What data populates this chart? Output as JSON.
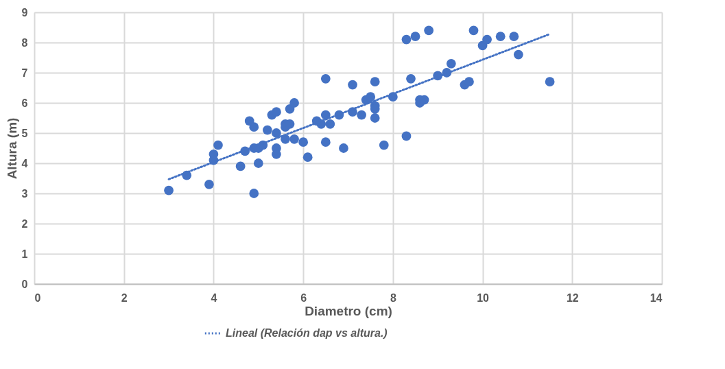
{
  "chart_data": {
    "type": "scatter",
    "xlabel": "Diametro (cm)",
    "ylabel": "Altura (m)",
    "xlim": [
      0,
      14
    ],
    "xticks": [
      0,
      2,
      4,
      6,
      8,
      10,
      12,
      14
    ],
    "ylim": [
      0,
      9
    ],
    "yticks": [
      0,
      1,
      2,
      3,
      4,
      5,
      6,
      7,
      8,
      9
    ],
    "grid": true,
    "legend": "bottom",
    "marker": "circle",
    "series": [
      {
        "color": "#4472c4",
        "x": [
          3.0,
          3.4,
          3.9,
          4.0,
          4.0,
          4.1,
          4.6,
          4.7,
          4.8,
          4.9,
          4.9,
          4.9,
          5.0,
          5.0,
          5.1,
          5.2,
          5.3,
          5.4,
          5.4,
          5.4,
          5.4,
          5.6,
          5.6,
          5.6,
          5.7,
          5.7,
          5.8,
          5.8,
          6.0,
          6.1,
          6.3,
          6.4,
          6.5,
          6.5,
          6.5,
          6.6,
          6.8,
          6.9,
          7.1,
          7.1,
          7.3,
          7.4,
          7.5,
          7.6,
          7.6,
          7.6,
          7.6,
          7.8,
          8.0,
          8.3,
          8.3,
          8.4,
          8.5,
          8.6,
          8.6,
          8.7,
          8.8,
          9.0,
          9.2,
          9.3,
          9.6,
          9.7,
          9.8,
          10.0,
          10.1,
          10.4,
          10.7,
          10.8,
          11.5
        ],
        "values": [
          3.1,
          3.6,
          3.3,
          4.3,
          4.1,
          4.6,
          3.9,
          4.4,
          5.4,
          5.2,
          4.5,
          3.0,
          4.5,
          4.0,
          4.6,
          5.1,
          5.6,
          5.7,
          5.0,
          4.5,
          4.3,
          5.3,
          5.2,
          4.8,
          5.8,
          5.3,
          6.0,
          4.8,
          4.7,
          4.2,
          5.4,
          5.3,
          6.8,
          5.6,
          4.7,
          5.3,
          5.6,
          4.5,
          6.6,
          5.7,
          5.6,
          6.1,
          6.2,
          6.7,
          5.9,
          5.8,
          5.5,
          4.6,
          6.2,
          8.1,
          4.9,
          6.8,
          8.2,
          6.1,
          6.0,
          6.1,
          8.4,
          6.9,
          7.0,
          7.3,
          6.6,
          6.7,
          8.4,
          7.9,
          8.1,
          8.2,
          8.2,
          7.6,
          6.7
        ]
      },
      {
        "type": "line",
        "name": "Lineal (Relación dap vs altura.)",
        "color": "#4472c4",
        "line_style": "dotted",
        "marker": "none",
        "x": [
          3.0,
          11.5
        ],
        "values": [
          3.47,
          8.28
        ]
      }
    ]
  }
}
